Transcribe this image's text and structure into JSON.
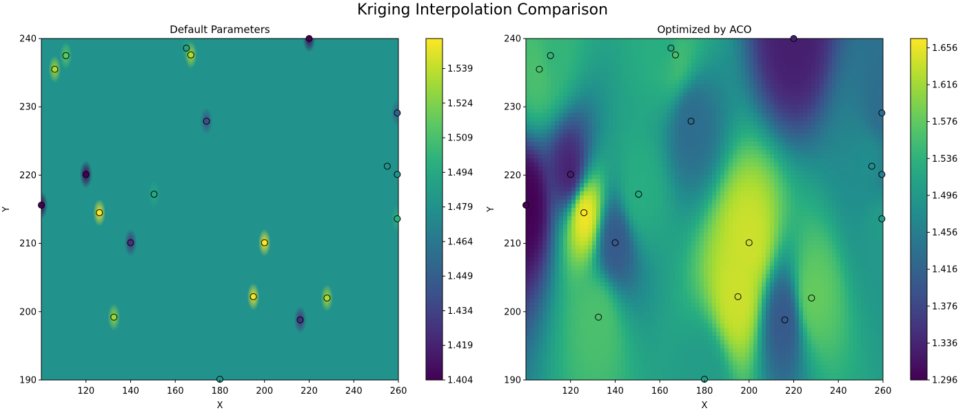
{
  "figure": {
    "title": "Kriging Interpolation Comparison"
  },
  "chart_data": [
    {
      "type": "heatmap",
      "title": "Default Parameters",
      "xlabel": "X",
      "ylabel": "Y",
      "xlim": [
        100,
        260
      ],
      "ylim": [
        190,
        240
      ],
      "xticks": [
        "120",
        "140",
        "160",
        "180",
        "200",
        "220",
        "240",
        "260"
      ],
      "yticks": [
        "190",
        "200",
        "210",
        "220",
        "230",
        "240"
      ],
      "colormap": "viridis",
      "background_value": 1.479,
      "colorbar": {
        "min": 1.404,
        "max": 1.552,
        "ticks": [
          "1.404",
          "1.419",
          "1.434",
          "1.449",
          "1.464",
          "1.479",
          "1.494",
          "1.509",
          "1.524",
          "1.539"
        ]
      },
      "points": [
        {
          "x": 100,
          "y": 215.6,
          "v": 1.404
        },
        {
          "x": 106,
          "y": 235.5,
          "v": 1.535
        },
        {
          "x": 111,
          "y": 237.5,
          "v": 1.515
        },
        {
          "x": 120,
          "y": 220.1,
          "v": 1.404
        },
        {
          "x": 126,
          "y": 214.5,
          "v": 1.552
        },
        {
          "x": 132.5,
          "y": 199.2,
          "v": 1.53
        },
        {
          "x": 140,
          "y": 210.1,
          "v": 1.425
        },
        {
          "x": 150.5,
          "y": 217.2,
          "v": 1.495
        },
        {
          "x": 165,
          "y": 238.6,
          "v": 1.49
        },
        {
          "x": 167,
          "y": 237.6,
          "v": 1.535
        },
        {
          "x": 174,
          "y": 227.9,
          "v": 1.44
        },
        {
          "x": 180,
          "y": 190.1,
          "v": 1.48
        },
        {
          "x": 195,
          "y": 202.2,
          "v": 1.55
        },
        {
          "x": 200,
          "y": 210.1,
          "v": 1.552
        },
        {
          "x": 216,
          "y": 198.8,
          "v": 1.425
        },
        {
          "x": 220,
          "y": 240.0,
          "v": 1.404
        },
        {
          "x": 228,
          "y": 202.0,
          "v": 1.535
        },
        {
          "x": 255,
          "y": 221.3,
          "v": 1.48
        },
        {
          "x": 259.5,
          "y": 229.1,
          "v": 1.45
        },
        {
          "x": 259.5,
          "y": 220.1,
          "v": 1.48
        },
        {
          "x": 259.5,
          "y": 213.6,
          "v": 1.5
        }
      ]
    },
    {
      "type": "heatmap",
      "title": "Optimized by ACO",
      "xlabel": "X",
      "ylabel": "Y",
      "xlim": [
        100,
        260
      ],
      "ylim": [
        190,
        240
      ],
      "xticks": [
        "120",
        "140",
        "160",
        "180",
        "200",
        "220",
        "240",
        "260"
      ],
      "yticks": [
        "190",
        "200",
        "210",
        "220",
        "230",
        "240"
      ],
      "colormap": "viridis",
      "colorbar": {
        "min": 1.296,
        "max": 1.666,
        "ticks": [
          "1.296",
          "1.336",
          "1.376",
          "1.416",
          "1.456",
          "1.496",
          "1.536",
          "1.576",
          "1.616",
          "1.656"
        ]
      },
      "points": [
        {
          "x": 100,
          "y": 215.6,
          "v": 1.296
        },
        {
          "x": 106,
          "y": 235.5,
          "v": 1.56
        },
        {
          "x": 111,
          "y": 237.5,
          "v": 1.54
        },
        {
          "x": 120,
          "y": 220.1,
          "v": 1.33
        },
        {
          "x": 126,
          "y": 214.5,
          "v": 1.666
        },
        {
          "x": 132.5,
          "y": 199.2,
          "v": 1.56
        },
        {
          "x": 140,
          "y": 210.1,
          "v": 1.4
        },
        {
          "x": 150.5,
          "y": 217.2,
          "v": 1.53
        },
        {
          "x": 165,
          "y": 238.6,
          "v": 1.52
        },
        {
          "x": 167,
          "y": 237.6,
          "v": 1.56
        },
        {
          "x": 174,
          "y": 227.9,
          "v": 1.43
        },
        {
          "x": 180,
          "y": 190.1,
          "v": 1.5
        },
        {
          "x": 195,
          "y": 202.2,
          "v": 1.64
        },
        {
          "x": 200,
          "y": 210.1,
          "v": 1.64
        },
        {
          "x": 216,
          "y": 198.8,
          "v": 1.4
        },
        {
          "x": 220,
          "y": 240.0,
          "v": 1.33
        },
        {
          "x": 228,
          "y": 202.0,
          "v": 1.58
        },
        {
          "x": 255,
          "y": 221.3,
          "v": 1.48
        },
        {
          "x": 259.5,
          "y": 229.1,
          "v": 1.43
        },
        {
          "x": 259.5,
          "y": 220.1,
          "v": 1.46
        },
        {
          "x": 259.5,
          "y": 213.6,
          "v": 1.5
        }
      ]
    }
  ]
}
